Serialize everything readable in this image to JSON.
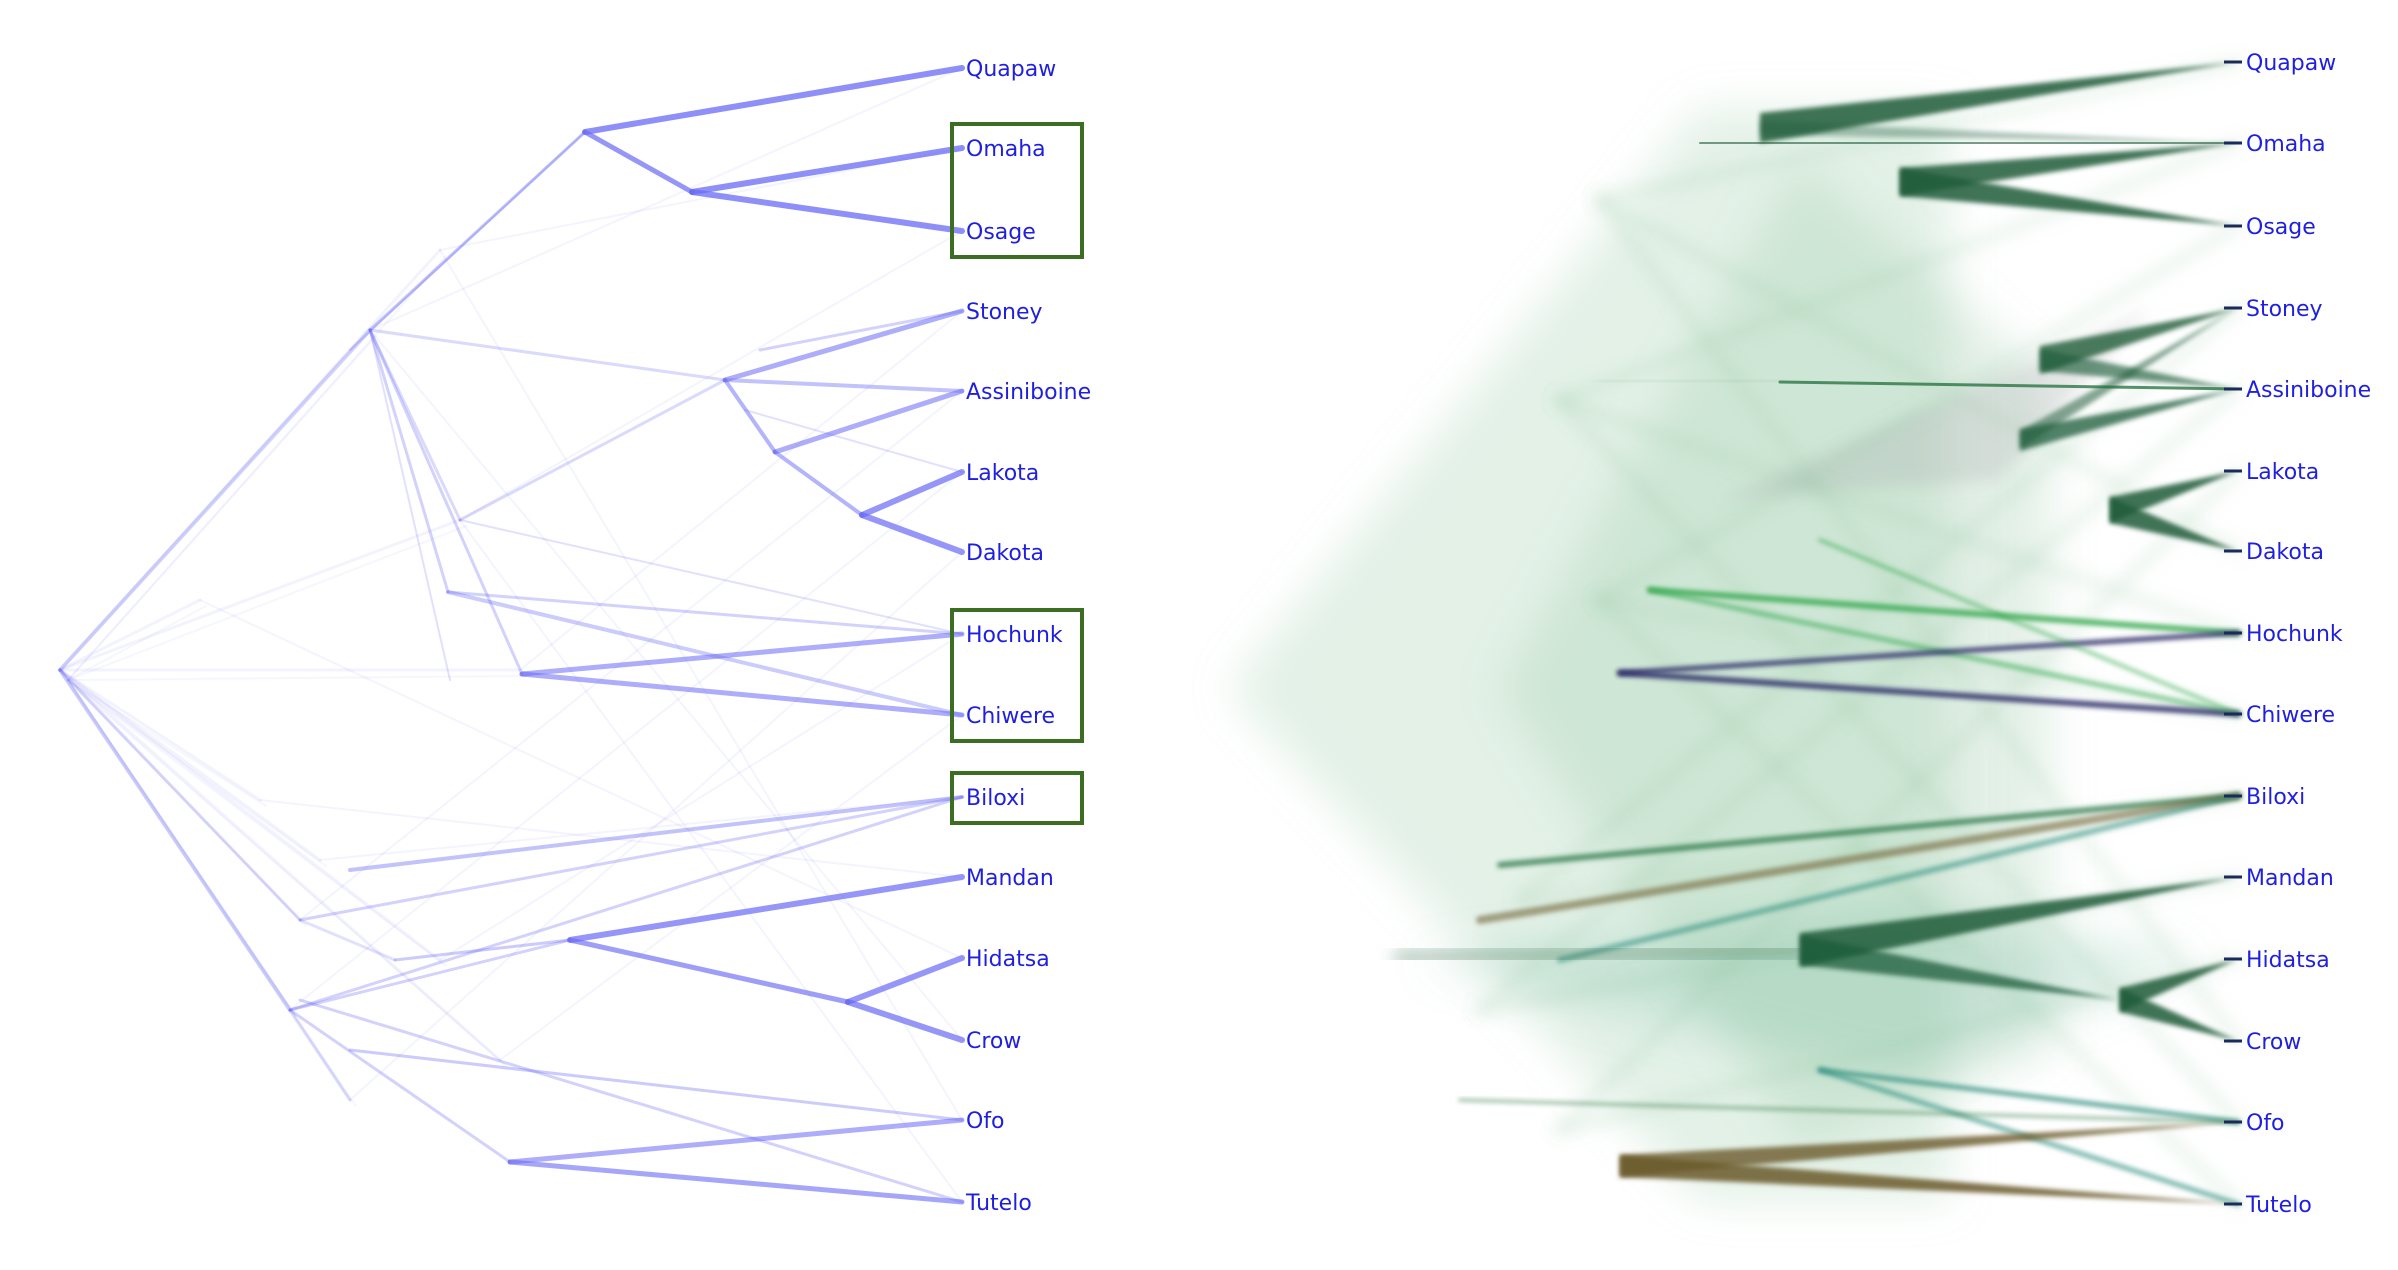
{
  "left_panel": {
    "edge_color": "#6a6af5",
    "leaves": [
      "Quapaw",
      "Omaha",
      "Osage",
      "Stoney",
      "Assiniboine",
      "Lakota",
      "Dakota",
      "Hochunk",
      "Chiwere",
      "Biloxi",
      "Mandan",
      "Hidatsa",
      "Crow",
      "Ofo",
      "Tutelo"
    ],
    "highlight_groups": [
      [
        "Omaha",
        "Osage"
      ],
      [
        "Hochunk",
        "Chiwere"
      ],
      [
        "Biloxi"
      ]
    ],
    "highlight_color": "#3b6e22"
  },
  "right_panel": {
    "edge_color": "#1e5c3a",
    "accent_colors": [
      "#1f6e3a",
      "#2fa84a",
      "#2a2a66",
      "#2a8a7a",
      "#6a5a2a"
    ],
    "leaves": [
      "Quapaw",
      "Omaha",
      "Osage",
      "Stoney",
      "Assiniboine",
      "Lakota",
      "Dakota",
      "Hochunk",
      "Chiwere",
      "Biloxi",
      "Mandan",
      "Hidatsa",
      "Crow",
      "Ofo",
      "Tutelo"
    ]
  },
  "label_color": "#1f1fe0"
}
